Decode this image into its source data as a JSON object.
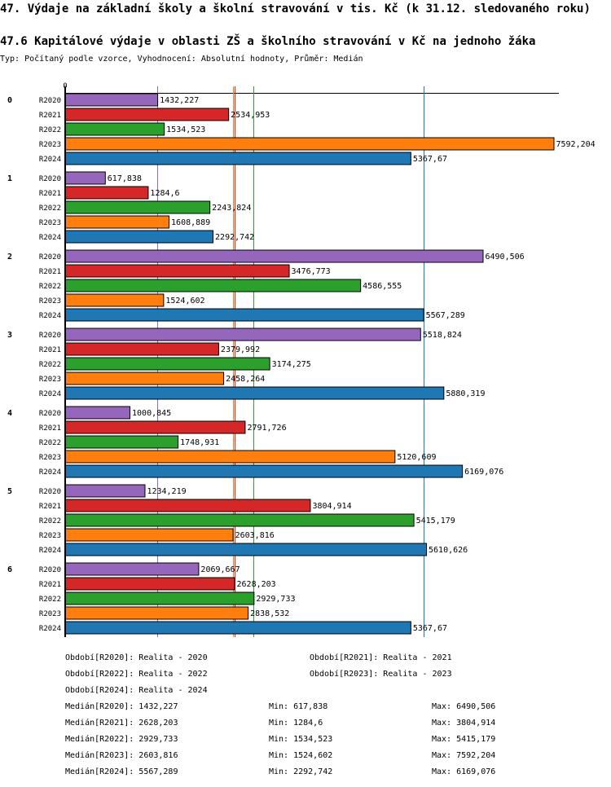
{
  "header": {
    "title": "47. Výdaje na základní školy a školní stravování v tis. Kč (k 31.12. sledovaného roku)",
    "subtitle": "47.6 Kapitálové výdaje v oblasti ZŠ a školního stravování v Kč na jednoho žáka",
    "info": "Typ: Počítaný podle vzorce, Vyhodnocení: Absolutní hodnoty, Průměr: Medián"
  },
  "chart_data": {
    "type": "bar",
    "orientation": "horizontal",
    "title": "47.6 Kapitálové výdaje v oblasti ZŠ a školního stravování v Kč na jednoho žáka",
    "axis_zero_label": "0",
    "xlim": [
      0,
      7650
    ],
    "categories": [
      "0",
      "1",
      "2",
      "3",
      "4",
      "5",
      "6"
    ],
    "series": [
      {
        "name": "R2020",
        "color": "#9467bd",
        "values": [
          1432.227,
          617.838,
          6490.506,
          5518.824,
          1000.845,
          1234.219,
          2069.667
        ],
        "labels": [
          "1432,227",
          "617,838",
          "6490,506",
          "5518,824",
          "1000,845",
          "1234,219",
          "2069,667"
        ]
      },
      {
        "name": "R2021",
        "color": "#d62728",
        "values": [
          2534.953,
          1284.6,
          3476.773,
          2379.992,
          2791.726,
          3804.914,
          2628.203
        ],
        "labels": [
          "2534,953",
          "1284,6",
          "3476,773",
          "2379,992",
          "2791,726",
          "3804,914",
          "2628,203"
        ]
      },
      {
        "name": "R2022",
        "color": "#2ca02c",
        "values": [
          1534.523,
          2243.824,
          4586.555,
          3174.275,
          1748.931,
          5415.179,
          2929.733
        ],
        "labels": [
          "1534,523",
          "2243,824",
          "4586,555",
          "3174,275",
          "1748,931",
          "5415,179",
          "2929,733"
        ]
      },
      {
        "name": "R2023",
        "color": "#ff7f0e",
        "values": [
          7592.204,
          1608.889,
          1524.602,
          2458.264,
          5120.609,
          2603.816,
          2838.532
        ],
        "labels": [
          "7592,204",
          "1608,889",
          "1524,602",
          "2458,264",
          "5120,609",
          "2603,816",
          "2838,532"
        ]
      },
      {
        "name": "R2024",
        "color": "#1f77b4",
        "values": [
          5367.67,
          2292.742,
          5567.289,
          5880.319,
          6169.076,
          5610.626,
          5367.67
        ],
        "labels": [
          "5367,67",
          "2292,742",
          "5567,289",
          "5880,319",
          "6169,076",
          "5610,626",
          "5367,67"
        ]
      }
    ],
    "median_lines": [
      {
        "series": "R2020",
        "value": 1432.227,
        "color": "#9467bd"
      },
      {
        "series": "R2021",
        "value": 2628.203,
        "color": "#d62728"
      },
      {
        "series": "R2022",
        "value": 2929.733,
        "color": "#2ca02c"
      },
      {
        "series": "R2023",
        "value": 2603.816,
        "color": "#ff7f0e"
      },
      {
        "series": "R2024",
        "value": 5567.289,
        "color": "#1f77b4"
      }
    ]
  },
  "legend": {
    "periods": [
      "Období[R2020]: Realita - 2020",
      "Období[R2021]: Realita - 2021",
      "Období[R2022]: Realita - 2022",
      "Období[R2023]: Realita - 2023",
      "Období[R2024]: Realita - 2024"
    ],
    "stats": [
      {
        "median": "Medián[R2020]: 1432,227",
        "min": "Min: 617,838",
        "max": "Max: 6490,506"
      },
      {
        "median": "Medián[R2021]: 2628,203",
        "min": "Min: 1284,6",
        "max": "Max: 3804,914"
      },
      {
        "median": "Medián[R2022]: 2929,733",
        "min": "Min: 1534,523",
        "max": "Max: 5415,179"
      },
      {
        "median": "Medián[R2023]: 2603,816",
        "min": "Min: 1524,602",
        "max": "Max: 7592,204"
      },
      {
        "median": "Medián[R2024]: 5567,289",
        "min": "Min: 2292,742",
        "max": "Max: 6169,076"
      }
    ]
  }
}
